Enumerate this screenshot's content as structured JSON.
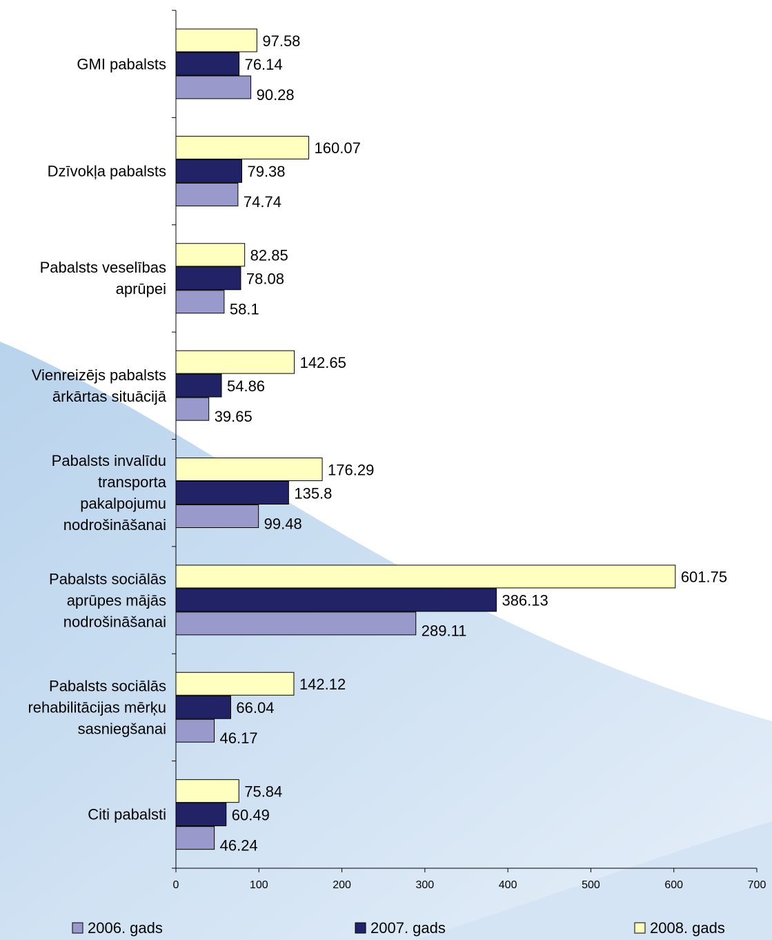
{
  "chart_data": {
    "type": "bar",
    "orientation": "horizontal",
    "categories": [
      "GMI pabalsts",
      "Dzīvokļa pabalsts",
      "Pabalsts veselības\naprūpei",
      "Vienreizējs pabalsts\nārkārtas situācijā",
      "Pabalsts invalīdu\ntransporta\npakalpojumu\nnodrošināšanai",
      "Pabalsts sociālās\naprūpes mājās\nnodrošināšanai",
      "Pabalsts sociālās\nrehabilitācijas mērķu\nsasniegšanai",
      "Citi pabalsti"
    ],
    "series": [
      {
        "name": "2006. gads",
        "color": "#9999cc",
        "values": [
          90.28,
          74.74,
          58.1,
          39.65,
          99.48,
          289.11,
          46.17,
          46.24
        ]
      },
      {
        "name": "2007. gads",
        "color": "#222266",
        "values": [
          76.14,
          79.38,
          78.08,
          54.86,
          135.8,
          386.13,
          66.04,
          60.49
        ]
      },
      {
        "name": "2008. gads",
        "color": "#ffffc0",
        "values": [
          97.58,
          160.07,
          82.85,
          142.65,
          176.29,
          601.75,
          142.12,
          75.84
        ]
      }
    ],
    "xlim": [
      0,
      700
    ],
    "xticks": [
      0,
      100,
      200,
      300,
      400,
      500,
      600,
      700
    ],
    "legend": "bottom"
  }
}
